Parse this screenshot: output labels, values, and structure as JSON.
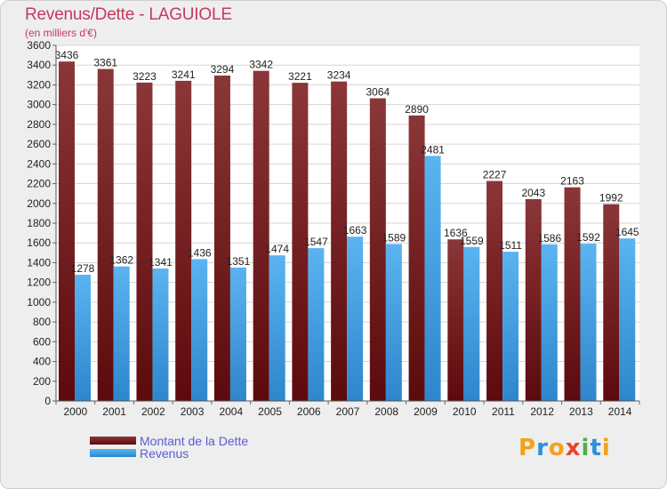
{
  "title": "Revenus/Dette - LAGUIOLE",
  "subtitle": "(en milliers d'€)",
  "colors": {
    "debt_top": "#8b3638",
    "debt_bottom": "#5c0a0d",
    "revenue_top": "#5ab4f0",
    "revenue_bottom": "#2e86cc",
    "title": "#c8385e",
    "legend_text": "#5b5bd6",
    "background": "#eeeeee"
  },
  "chart_data": {
    "type": "bar",
    "categories": [
      "2000",
      "2001",
      "2002",
      "2003",
      "2004",
      "2005",
      "2006",
      "2007",
      "2008",
      "2009",
      "2010",
      "2011",
      "2012",
      "2013",
      "2014"
    ],
    "series": [
      {
        "name": "Montant de la Dette",
        "values": [
          3436,
          3361,
          3223,
          3241,
          3294,
          3342,
          3221,
          3234,
          3064,
          2890,
          1636,
          2227,
          2043,
          2163,
          1992
        ]
      },
      {
        "name": "Revenus",
        "values": [
          1278,
          1362,
          1341,
          1436,
          1351,
          1474,
          1547,
          1663,
          1589,
          2481,
          1559,
          1511,
          1586,
          1592,
          1645
        ]
      }
    ],
    "ylim": [
      0,
      3600
    ],
    "yticks": [
      0,
      200,
      400,
      600,
      800,
      1000,
      1200,
      1400,
      1600,
      1800,
      2000,
      2200,
      2400,
      2600,
      2800,
      3000,
      3200,
      3400,
      3600
    ],
    "grid": true,
    "legend_position": "bottom-left"
  },
  "legend": {
    "debt_label": "Montant de la Dette",
    "revenue_label": "Revenus"
  },
  "logo": {
    "letters": [
      "P",
      "r",
      "o",
      "x",
      "i",
      "t",
      "i"
    ],
    "letter_colors": [
      "#f2a21b",
      "#2f8fd8",
      "#f2a21b",
      "#e8452b",
      "#4caf50",
      "#2f8fd8",
      "#f2a21b"
    ]
  }
}
